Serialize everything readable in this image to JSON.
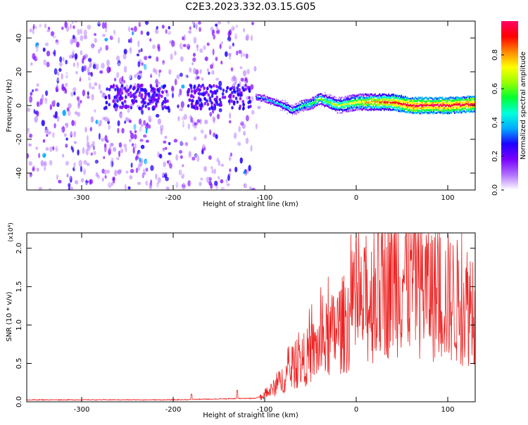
{
  "title": "C2E3.2023.332.03.15.G05",
  "chart_data": [
    {
      "type": "heatmap",
      "title": "C2E3.2023.332.03.15.G05",
      "xlabel": "Height of straight line (km)",
      "ylabel": "Frequency (Hz)",
      "xlim": [
        -360,
        130
      ],
      "ylim": [
        -50,
        50
      ],
      "xticks": [
        -300,
        -200,
        -100,
        0,
        100
      ],
      "yticks": [
        -40,
        -20,
        0,
        20,
        40
      ],
      "colorbar": {
        "label": "Normalized spectral amplitude",
        "range": [
          0.0,
          1.0
        ],
        "ticks": [
          "0.0",
          "0.2",
          "0.4",
          "0.6",
          "0.8"
        ],
        "colormap": [
          "#ffffff",
          "#b070ff",
          "#7a00ff",
          "#1e00ff",
          "#00aaff",
          "#00ffdd",
          "#00ff33",
          "#99ff00",
          "#ffff00",
          "#ff8800",
          "#ff0000",
          "#ff0066"
        ]
      },
      "ridge": {
        "x": [
          -110,
          -100,
          -90,
          -80,
          -70,
          -60,
          -50,
          -40,
          -30,
          -20,
          -10,
          0,
          20,
          40,
          60,
          80,
          100,
          130
        ],
        "y": [
          5,
          4,
          2,
          0,
          -3,
          0,
          1,
          4,
          2,
          0,
          1,
          2,
          2,
          2,
          0,
          0,
          0,
          1
        ]
      },
      "clusters": [
        {
          "x": -240,
          "y": 5
        },
        {
          "x": -150,
          "y": 5
        }
      ]
    },
    {
      "type": "line",
      "xlabel": "Height of straight line (km)",
      "ylabel": "SNR (10 * v/v)",
      "multiplier": "(x10⁴)",
      "xlim": [
        -360,
        130
      ],
      "ylim": [
        0.0,
        2.2
      ],
      "xticks": [
        -300,
        -200,
        -100,
        0,
        100
      ],
      "yticks": [
        "0.0",
        "0.5",
        "1.0",
        "1.5",
        "2.0"
      ],
      "line_color": "#ee2222",
      "envelope": {
        "x": [
          -360,
          -200,
          -110,
          -100,
          -90,
          -80,
          -70,
          -60,
          -50,
          -40,
          -30,
          -20,
          -10,
          0,
          10,
          20,
          30,
          40,
          50,
          60,
          70,
          80,
          90,
          100,
          110,
          120,
          130
        ],
        "y": [
          0.02,
          0.02,
          0.04,
          0.08,
          0.18,
          0.3,
          0.42,
          0.52,
          0.62,
          0.72,
          0.82,
          0.95,
          1.05,
          1.15,
          1.25,
          1.38,
          1.5,
          1.6,
          1.65,
          1.62,
          1.55,
          1.45,
          1.4,
          1.35,
          1.3,
          1.28,
          1.3
        ]
      },
      "spikes": [
        {
          "x": -180,
          "y": 0.1
        },
        {
          "x": -130,
          "y": 0.15
        }
      ]
    }
  ]
}
